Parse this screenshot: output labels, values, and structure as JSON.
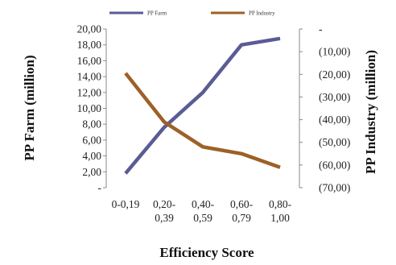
{
  "chart_data": {
    "type": "line",
    "title": "",
    "xlabel": "Efficiency  Score",
    "ylabel_left": "PP Farm (million)",
    "ylabel_right": "PP Industry (million)",
    "categories": [
      [
        "0-0,19"
      ],
      [
        "0,20-",
        "0,39"
      ],
      [
        "0,40-",
        "0,59"
      ],
      [
        "0,60-",
        "0,79"
      ],
      [
        "0,80-",
        "1,00"
      ]
    ],
    "left_axis": {
      "range": [
        0,
        20
      ],
      "step": 2,
      "tick_labels": [
        "-",
        "2,00",
        "4,00",
        "6,00",
        "8,00",
        "10,00",
        "12,00",
        "14,00",
        "16,00",
        "18,00",
        "20,00"
      ]
    },
    "right_axis": {
      "range": [
        -70,
        0
      ],
      "step": 10,
      "tick_labels": [
        "-",
        "(10,00)",
        "(20,00)",
        "(30,00)",
        "(40,00)",
        "(50,00)",
        "(60,00)",
        "(70,00)"
      ]
    },
    "series": [
      {
        "name": "PP Farm",
        "axis": "left",
        "color": "#5b5b96",
        "values": [
          1.8,
          7.6,
          12.0,
          18.0,
          18.8
        ]
      },
      {
        "name": "PP Industry",
        "axis": "right",
        "color": "#9c6127",
        "values": [
          -19.5,
          -41.0,
          -52.0,
          -55.0,
          -61.0
        ]
      }
    ],
    "legend": "top-center",
    "grid": false
  }
}
